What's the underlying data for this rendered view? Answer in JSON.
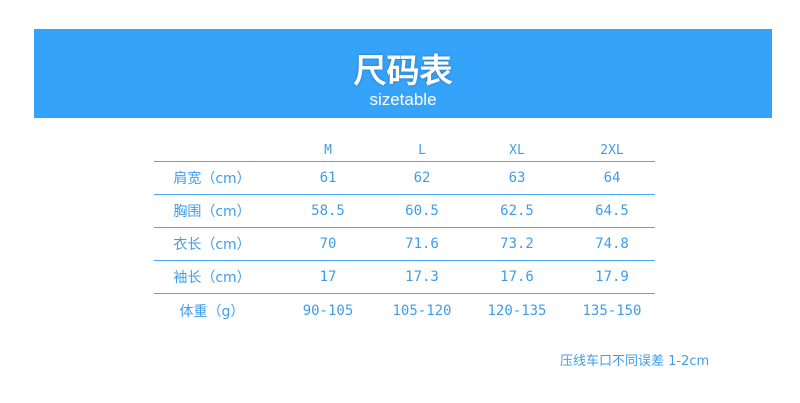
{
  "banner": {
    "title": "尺码表",
    "subtitle": "sizetable",
    "color": "#36a3fb"
  },
  "table": {
    "columns": [
      "",
      "M",
      "L",
      "XL",
      "2XL"
    ],
    "rows": [
      {
        "label": "肩宽（cm）",
        "values": [
          "61",
          "62",
          "63",
          "64"
        ]
      },
      {
        "label": "胸围（cm）",
        "values": [
          "58.5",
          "60.5",
          "62.5",
          "64.5"
        ]
      },
      {
        "label": "衣长（cm）",
        "values": [
          "70",
          "71.6",
          "73.2",
          "74.8"
        ]
      },
      {
        "label": "袖长（cm）",
        "values": [
          "17",
          "17.3",
          "17.6",
          "17.9"
        ]
      },
      {
        "label": "体重（g）",
        "values": [
          "90-105",
          "105-120",
          "120-135",
          "135-150"
        ]
      }
    ]
  },
  "note": "压线车口不同误差 1-2cm"
}
